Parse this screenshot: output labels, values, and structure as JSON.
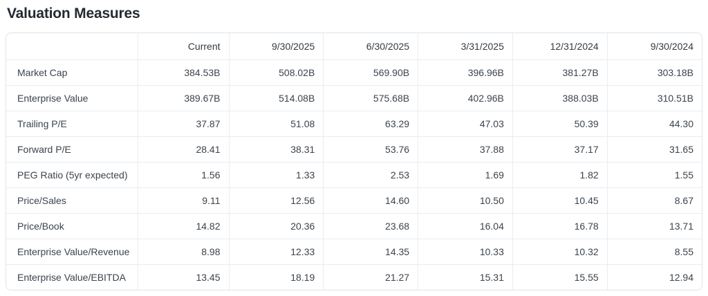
{
  "page": {
    "title": "Valuation Measures"
  },
  "colors": {
    "title_text": "#232a31",
    "body_text": "#3b434c",
    "border": "#e9edf1",
    "outer_border": "#dfe4e8",
    "background": "#ffffff"
  },
  "chart_data": {
    "type": "table",
    "title": "Valuation Measures",
    "columns": [
      "",
      "Current",
      "9/30/2025",
      "6/30/2025",
      "3/31/2025",
      "12/31/2024",
      "9/30/2024"
    ],
    "rows": [
      {
        "label": "Market Cap",
        "values": [
          "384.53B",
          "508.02B",
          "569.90B",
          "396.96B",
          "381.27B",
          "303.18B"
        ]
      },
      {
        "label": "Enterprise Value",
        "values": [
          "389.67B",
          "514.08B",
          "575.68B",
          "402.96B",
          "388.03B",
          "310.51B"
        ]
      },
      {
        "label": "Trailing P/E",
        "values": [
          "37.87",
          "51.08",
          "63.29",
          "47.03",
          "50.39",
          "44.30"
        ]
      },
      {
        "label": "Forward P/E",
        "values": [
          "28.41",
          "38.31",
          "53.76",
          "37.88",
          "37.17",
          "31.65"
        ]
      },
      {
        "label": "PEG Ratio (5yr expected)",
        "values": [
          "1.56",
          "1.33",
          "2.53",
          "1.69",
          "1.82",
          "1.55"
        ]
      },
      {
        "label": "Price/Sales",
        "values": [
          "9.11",
          "12.56",
          "14.60",
          "10.50",
          "10.45",
          "8.67"
        ]
      },
      {
        "label": "Price/Book",
        "values": [
          "14.82",
          "20.36",
          "23.68",
          "16.04",
          "16.78",
          "13.71"
        ]
      },
      {
        "label": "Enterprise Value/Revenue",
        "values": [
          "8.98",
          "12.33",
          "14.35",
          "10.33",
          "10.32",
          "8.55"
        ]
      },
      {
        "label": "Enterprise Value/EBITDA",
        "values": [
          "13.45",
          "18.19",
          "21.27",
          "15.31",
          "15.55",
          "12.94"
        ]
      }
    ]
  }
}
